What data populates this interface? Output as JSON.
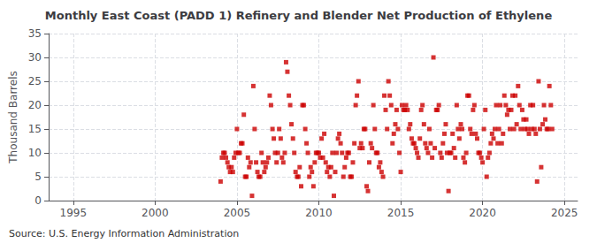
{
  "chart_data": {
    "type": "scatter",
    "title": "Monthly East Coast (PADD 1) Refinery and Blender Net Production of Ethylene",
    "ylabel": "Thousand Barrels",
    "annotation": "Source: U.S. Energy Information Administration",
    "color": "#cc0000",
    "marker": "square",
    "grid": true,
    "xlim": [
      1993.5,
      2025.8
    ],
    "xticks": [
      1995,
      2000,
      2005,
      2010,
      2015,
      2020,
      2025
    ],
    "ylim": [
      0,
      35
    ],
    "yticks": [
      0,
      5,
      10,
      15,
      20,
      25,
      30,
      35
    ],
    "x": [
      2004.0,
      2004.08,
      2004.17,
      2004.25,
      2004.33,
      2004.42,
      2004.5,
      2004.58,
      2004.67,
      2004.75,
      2004.83,
      2004.92,
      2005.0,
      2005.08,
      2005.17,
      2005.25,
      2005.33,
      2005.42,
      2005.5,
      2005.58,
      2005.67,
      2005.75,
      2005.83,
      2005.92,
      2006.0,
      2006.08,
      2006.17,
      2006.25,
      2006.33,
      2006.42,
      2006.5,
      2006.58,
      2006.67,
      2006.75,
      2006.83,
      2006.92,
      2007.0,
      2007.08,
      2007.17,
      2007.25,
      2007.33,
      2007.42,
      2007.5,
      2007.58,
      2007.67,
      2007.75,
      2007.83,
      2007.92,
      2008.0,
      2008.08,
      2008.17,
      2008.25,
      2008.33,
      2008.42,
      2008.5,
      2008.58,
      2008.67,
      2008.75,
      2008.83,
      2008.92,
      2009.0,
      2009.08,
      2009.17,
      2009.25,
      2009.33,
      2009.42,
      2009.5,
      2009.58,
      2009.67,
      2009.75,
      2009.83,
      2009.92,
      2010.0,
      2010.08,
      2010.17,
      2010.25,
      2010.33,
      2010.42,
      2010.5,
      2010.58,
      2010.67,
      2010.75,
      2010.83,
      2010.92,
      2011.0,
      2011.08,
      2011.17,
      2011.25,
      2011.33,
      2011.42,
      2011.5,
      2011.58,
      2011.67,
      2011.75,
      2011.83,
      2011.92,
      2012.0,
      2012.08,
      2012.17,
      2012.25,
      2012.33,
      2012.42,
      2012.5,
      2012.58,
      2012.67,
      2012.75,
      2012.83,
      2012.92,
      2013.0,
      2013.08,
      2013.17,
      2013.25,
      2013.33,
      2013.42,
      2013.5,
      2013.58,
      2013.67,
      2013.75,
      2013.83,
      2013.92,
      2014.0,
      2014.08,
      2014.17,
      2014.25,
      2014.33,
      2014.42,
      2014.5,
      2014.58,
      2014.67,
      2014.75,
      2014.83,
      2014.92,
      2015.0,
      2015.08,
      2015.17,
      2015.25,
      2015.33,
      2015.42,
      2015.5,
      2015.58,
      2015.67,
      2015.75,
      2015.83,
      2015.92,
      2016.0,
      2016.08,
      2016.17,
      2016.25,
      2016.33,
      2016.42,
      2016.5,
      2016.58,
      2016.67,
      2016.75,
      2016.83,
      2016.92,
      2017.0,
      2017.08,
      2017.17,
      2017.25,
      2017.33,
      2017.42,
      2017.5,
      2017.58,
      2017.67,
      2017.75,
      2017.83,
      2017.92,
      2018.0,
      2018.08,
      2018.17,
      2018.25,
      2018.33,
      2018.42,
      2018.5,
      2018.58,
      2018.67,
      2018.75,
      2018.83,
      2018.92,
      2019.0,
      2019.08,
      2019.17,
      2019.25,
      2019.33,
      2019.42,
      2019.5,
      2019.58,
      2019.67,
      2019.75,
      2019.83,
      2019.92,
      2020.0,
      2020.08,
      2020.17,
      2020.25,
      2020.33,
      2020.42,
      2020.5,
      2020.58,
      2020.67,
      2020.75,
      2020.83,
      2020.92,
      2021.0,
      2021.08,
      2021.17,
      2021.25,
      2021.33,
      2021.42,
      2021.5,
      2021.58,
      2021.67,
      2021.75,
      2021.83,
      2021.92,
      2022.0,
      2022.08,
      2022.17,
      2022.25,
      2022.33,
      2022.42,
      2022.5,
      2022.58,
      2022.67,
      2022.75,
      2022.83,
      2022.92,
      2023.0,
      2023.08,
      2023.17,
      2023.25,
      2023.33,
      2023.42,
      2023.5,
      2023.58,
      2023.67,
      2023.75,
      2023.83,
      2023.92,
      2024.0,
      2024.08,
      2024.17,
      2024.25
    ],
    "values": [
      4.0,
      9.0,
      10.0,
      10.0,
      9.0,
      8.0,
      7.0,
      6.0,
      7.0,
      6.0,
      9.0,
      10.0,
      15.0,
      10.0,
      10.0,
      12.0,
      12.0,
      18.0,
      5.0,
      5.0,
      9.0,
      7.0,
      8.0,
      1.0,
      24.0,
      15.0,
      8.0,
      6.0,
      5.0,
      5.0,
      10.0,
      8.0,
      6.0,
      7.0,
      8.0,
      9.0,
      22.0,
      20.0,
      15.0,
      13.0,
      10.0,
      8.0,
      10.0,
      15.0,
      13.0,
      9.0,
      8.0,
      10.0,
      29.0,
      27.0,
      22.0,
      20.0,
      16.0,
      13.0,
      10.0,
      6.0,
      5.0,
      5.0,
      7.0,
      3.0,
      20.0,
      20.0,
      15.0,
      12.0,
      10.0,
      5.0,
      7.0,
      6.0,
      3.0,
      8.0,
      10.0,
      10.0,
      10.0,
      9.0,
      13.0,
      9.0,
      14.0,
      8.0,
      6.0,
      7.0,
      5.0,
      7.0,
      10.0,
      1.0,
      6.0,
      10.0,
      13.0,
      14.0,
      12.0,
      10.0,
      5.0,
      7.0,
      9.0,
      10.0,
      10.0,
      5.0,
      5.0,
      8.0,
      12.0,
      20.0,
      22.0,
      25.0,
      11.0,
      12.0,
      11.0,
      15.0,
      15.0,
      3.0,
      2.0,
      8.0,
      12.0,
      11.0,
      20.0,
      15.0,
      10.0,
      10.0,
      7.0,
      8.0,
      6.0,
      5.0,
      22.0,
      19.0,
      15.0,
      25.0,
      22.0,
      20.0,
      12.0,
      14.0,
      16.0,
      19.0,
      15.0,
      10.0,
      6.0,
      20.0,
      19.0,
      19.0,
      20.0,
      19.0,
      15.0,
      16.0,
      13.0,
      12.0,
      12.0,
      11.0,
      10.0,
      9.0,
      13.0,
      19.0,
      20.0,
      16.0,
      12.0,
      11.0,
      10.0,
      15.0,
      12.0,
      9.0,
      30.0,
      11.0,
      19.0,
      19.0,
      20.0,
      10.0,
      9.0,
      12.0,
      14.0,
      16.0,
      10.0,
      2.0,
      10.0,
      10.0,
      14.0,
      11.0,
      9.0,
      20.0,
      15.0,
      13.0,
      16.0,
      15.0,
      9.0,
      8.0,
      10.0,
      22.0,
      22.0,
      15.0,
      14.0,
      19.0,
      20.0,
      14.0,
      13.0,
      10.0,
      10.0,
      9.0,
      8.0,
      15.0,
      19.0,
      5.0,
      9.0,
      10.0,
      12.0,
      14.0,
      13.0,
      15.0,
      20.0,
      12.0,
      15.0,
      20.0,
      12.0,
      14.0,
      22.0,
      20.0,
      18.0,
      19.0,
      15.0,
      19.0,
      22.0,
      15.0,
      22.0,
      16.0,
      24.0,
      20.0,
      15.0,
      19.0,
      17.0,
      15.0,
      17.0,
      15.0,
      14.0,
      20.0,
      15.0,
      20.0,
      15.0,
      14.0,
      4.0,
      25.0,
      15.0,
      7.0,
      16.0,
      20.0,
      17.0,
      15.0,
      15.0,
      24.0,
      20.0,
      15.0
    ]
  }
}
